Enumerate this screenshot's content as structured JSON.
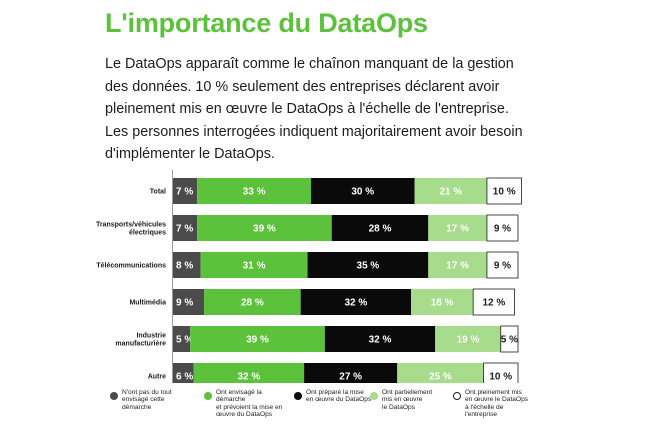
{
  "title": "L'importance du DataOps",
  "intro": "Le DataOps apparaît comme le chaînon manquant de la gestion des données. 10 % seulement des entreprises déclarent avoir pleinement mis en œuvre le DataOps à l'échelle de l'entreprise. Les personnes interrogées indiquent majoritairement avoir besoin d'implémenter le DataOps.",
  "colors": {
    "brand_green": "#5cc13b",
    "dark_gray": "#4b4b4b",
    "green": "#5cc13b",
    "black": "#0a0a0a",
    "light_green": "#a6dc8c",
    "white": "#ffffff"
  },
  "chart_data": {
    "type": "bar",
    "orientation": "horizontal",
    "stacked": true,
    "percent": true,
    "value_suffix": " %",
    "categories": [
      [
        "Total"
      ],
      [
        "Transports/véhicules",
        "électriques"
      ],
      [
        "Télécommunications"
      ],
      [
        "Multimédia"
      ],
      [
        "Industrie",
        "manufacturière"
      ],
      [
        "Autre"
      ]
    ],
    "series": [
      {
        "name": "N'ont pas du tout envisagé cette démarche",
        "color": "#4b4b4b",
        "label_color": "#ffffff",
        "values": [
          7,
          7,
          8,
          9,
          5,
          6
        ]
      },
      {
        "name": "Ont envisagé la démarche et prévoient la mise en œuvre du DataOps",
        "color": "#5cc13b",
        "label_color": "#ffffff",
        "values": [
          33,
          39,
          31,
          28,
          39,
          32
        ]
      },
      {
        "name": "Ont préparé la mise en œuvre du DataOps",
        "color": "#0a0a0a",
        "label_color": "#ffffff",
        "values": [
          30,
          28,
          35,
          32,
          32,
          27
        ]
      },
      {
        "name": "Ont partiellement mis en œuvre le DataOps",
        "color": "#a6dc8c",
        "label_color": "#ffffff",
        "values": [
          21,
          17,
          17,
          18,
          19,
          25
        ]
      },
      {
        "name": "Ont pleinement mis en œuvre le DataOps à l'échelle de l'entreprise",
        "color": "#ffffff",
        "label_color": "#1d1d1d",
        "values": [
          10,
          9,
          9,
          12,
          5,
          10
        ]
      }
    ],
    "legend": [
      {
        "lines": [
          "N'ont pas du tout",
          "envisagé cette",
          "démarche"
        ]
      },
      {
        "lines": [
          "Ont envisagé la démarche",
          "et prévoient la mise en",
          "œuvre du DataOps"
        ]
      },
      {
        "lines": [
          "Ont préparé la mise",
          "en œuvre du DataOps"
        ]
      },
      {
        "lines": [
          "Ont partiellement",
          "mis en œuvre",
          "le DataOps"
        ]
      },
      {
        "lines": [
          "Ont pleinement mis",
          "en œuvre le DataOps",
          "à l'échelle de l'entreprise"
        ]
      }
    ],
    "legend_position": "bottom",
    "grid": false
  }
}
